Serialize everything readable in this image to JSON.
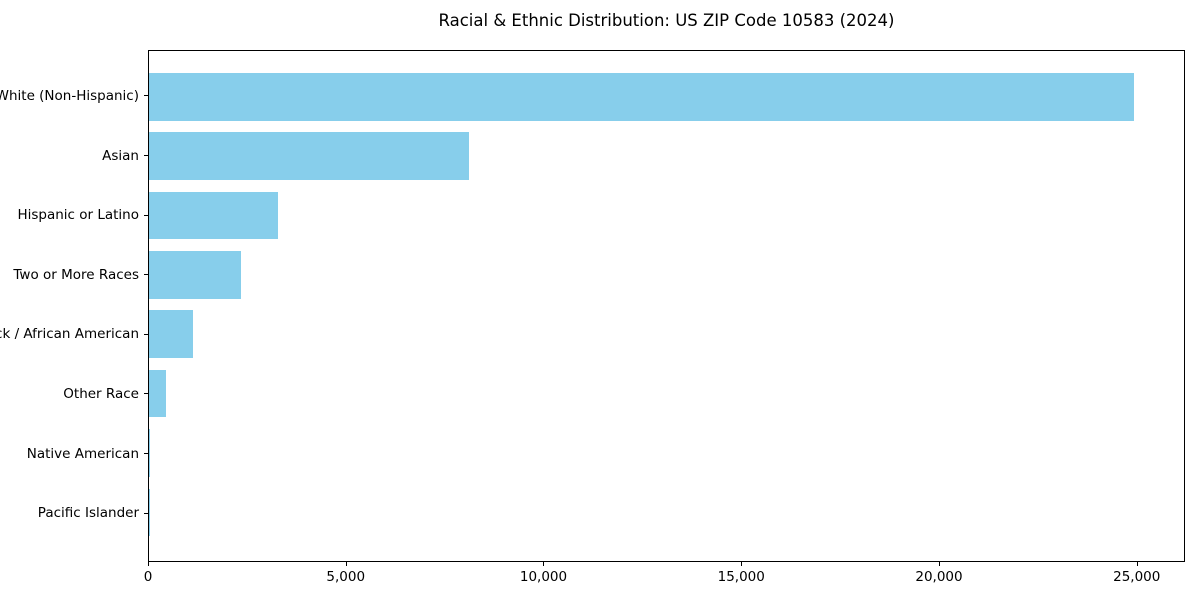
{
  "chart_data": {
    "type": "bar",
    "orientation": "horizontal",
    "title": "Racial & Ethnic Distribution: US ZIP Code 10583 (2024)",
    "categories": [
      "White (Non-Hispanic)",
      "Asian",
      "Hispanic or Latino",
      "Two or More Races",
      "Black / African American",
      "Other Race",
      "Native American",
      "Pacific Islander"
    ],
    "values": [
      24960,
      8110,
      3260,
      2330,
      1110,
      430,
      10,
      5
    ],
    "xlabel": "",
    "ylabel": "",
    "xlim": [
      0,
      26220
    ],
    "xticks": [
      0,
      5000,
      10000,
      15000,
      20000,
      25000
    ],
    "xtick_labels": [
      "0",
      "5,000",
      "10,000",
      "15,000",
      "20,000",
      "25,000"
    ],
    "bar_color": "#87CEEB",
    "axis_color": "#000000",
    "background": "#ffffff",
    "grid": false,
    "legend": false
  }
}
